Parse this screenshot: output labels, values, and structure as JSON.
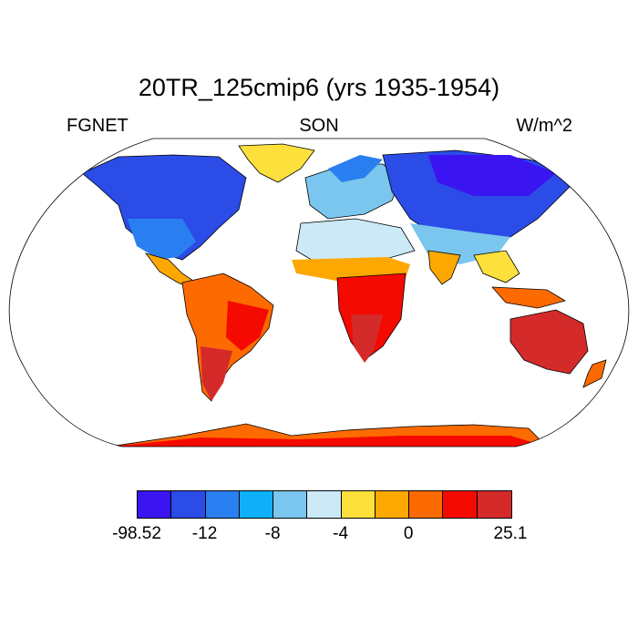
{
  "map": {
    "title": "20TR_125cmip6 (yrs 1935-1954)",
    "left_label": "FGNET",
    "center_label": "SON",
    "right_label": "W/m^2",
    "projection": "robinson",
    "coastline_color": "#000000",
    "ocean_color": "#ffffff"
  },
  "colorbar": {
    "colors": [
      "#3b14f2",
      "#2b4ce6",
      "#2a7ff0",
      "#0fb0f7",
      "#7ac6ee",
      "#cbe9f6",
      "#fde03c",
      "#fda800",
      "#fd6a00",
      "#f40a00",
      "#d42a2a"
    ],
    "labels": [
      "-98.52",
      "-12",
      "-8",
      "-4",
      "0",
      "25.1"
    ]
  }
}
